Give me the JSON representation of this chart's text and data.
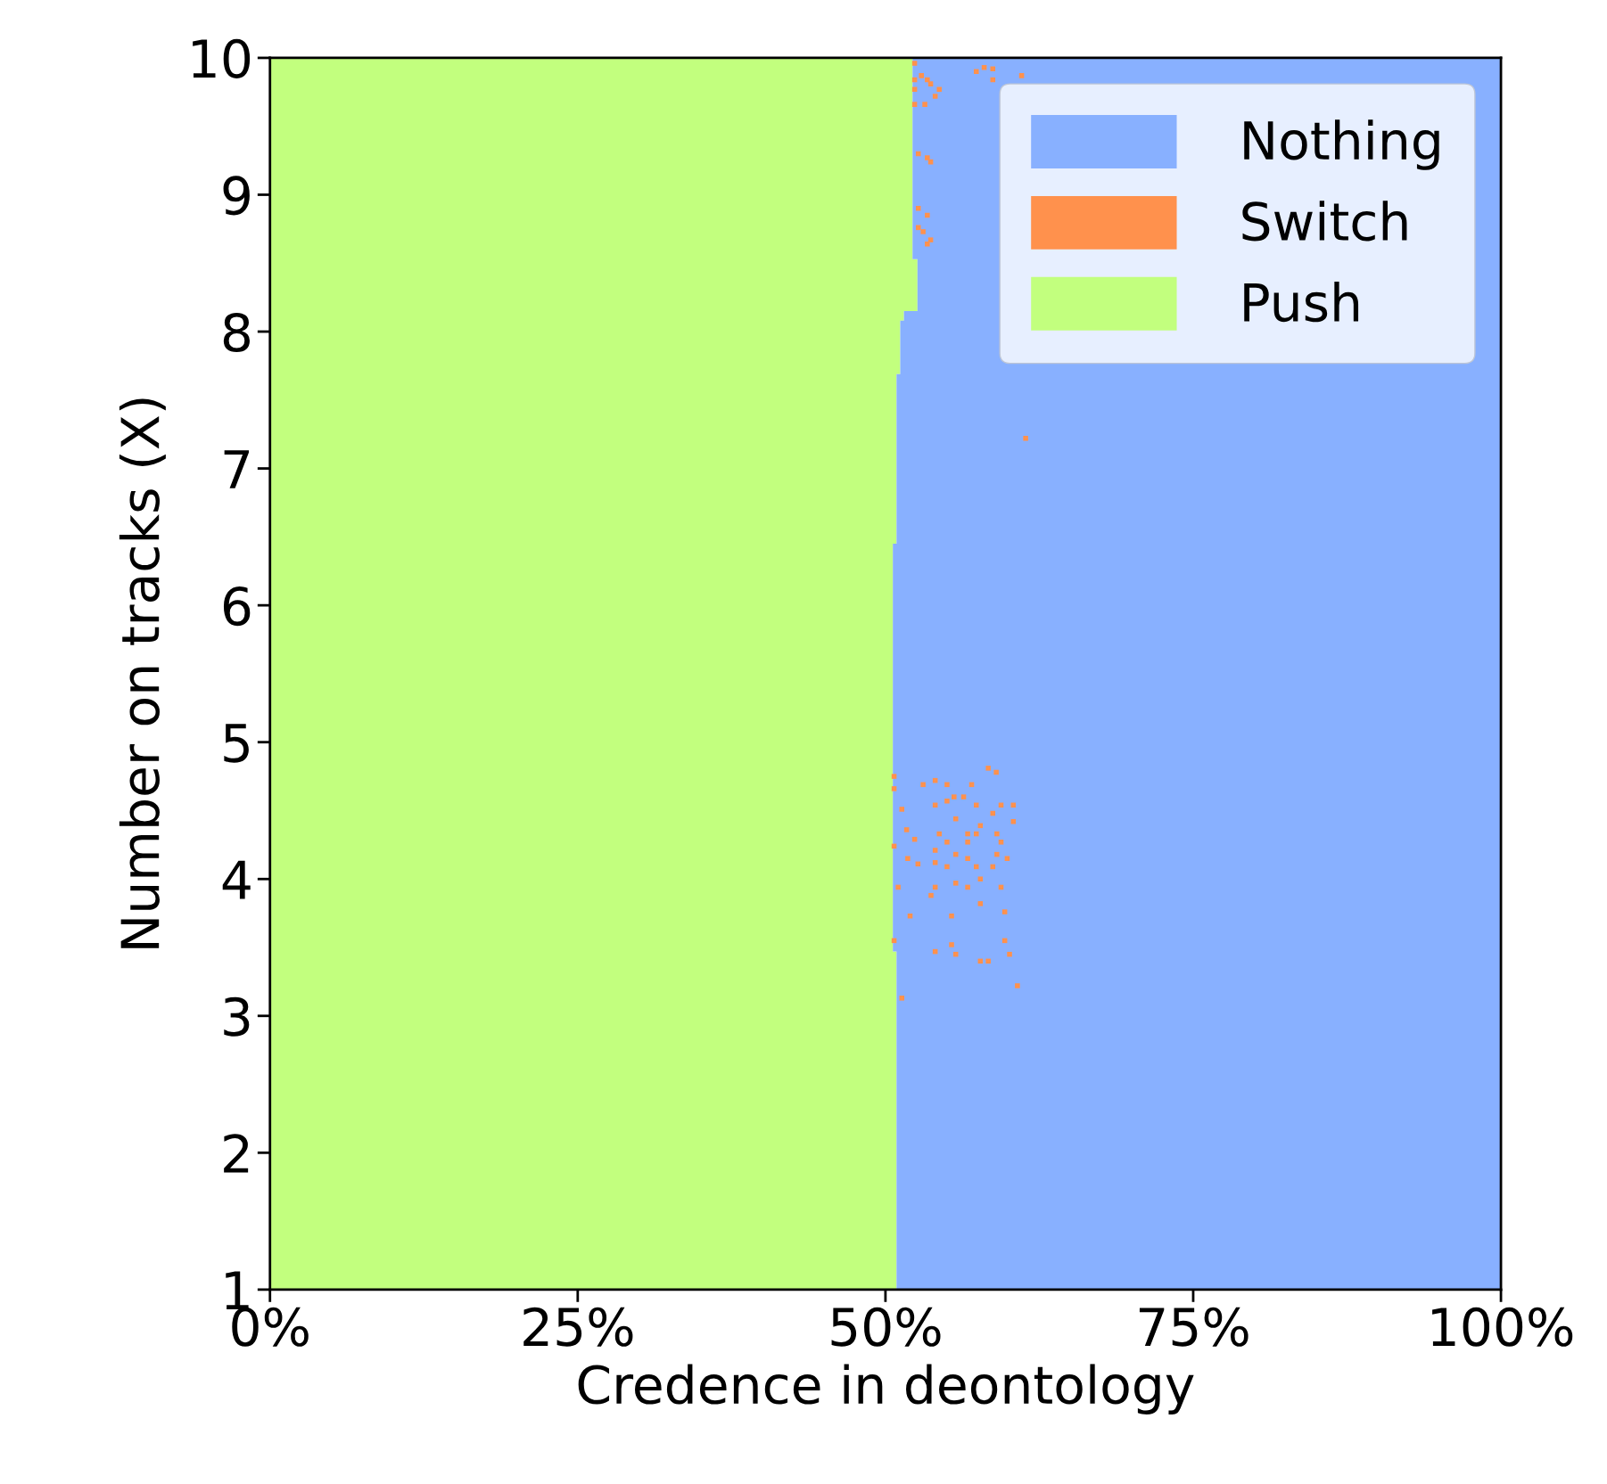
{
  "chart_data": {
    "type": "area",
    "orientation": "horizontal",
    "stacked": true,
    "xlabel": "Credence in deontology",
    "ylabel": "Number on tracks (X)",
    "x": [
      1,
      3.47,
      3.47,
      6.45,
      6.45,
      7.69,
      7.69,
      8.08,
      8.08,
      8.15,
      8.15,
      8.53,
      8.53,
      10
    ],
    "series": [
      {
        "name": "Push",
        "color": "#c2ff7e",
        "values": [
          50.9,
          50.9,
          50.6,
          50.6,
          50.9,
          50.9,
          51.2,
          51.2,
          51.5,
          51.5,
          52.6,
          52.6,
          52.2,
          52.2
        ]
      },
      {
        "name": "Switch",
        "type": "scatter",
        "color": "#ff914d",
        "marker": "square",
        "values": [
          58.35,
          59.0,
          50.7,
          50.7,
          53.06,
          54.04,
          55.0,
          57.0,
          55.57,
          56.35,
          55.0,
          57.38,
          59.39,
          60.39,
          51.33,
          54.04,
          58.72,
          55.71,
          60.39,
          57.71,
          51.72,
          54.37,
          56.68,
          57.38,
          59.05,
          52.37,
          55.0,
          56.68,
          59.39,
          50.7,
          54.04,
          55.71,
          59.05,
          51.81,
          52.64,
          56.68,
          59.89,
          54.04,
          55.0,
          57.38,
          58.72,
          57.71,
          55.71,
          51.03,
          54.04,
          56.68,
          59.39,
          53.7,
          57.71,
          59.69,
          52.0,
          55.37,
          50.7,
          59.69,
          55.37,
          54.04,
          55.71,
          60.08,
          57.71,
          58.35,
          60.72,
          51.33,
          52.37,
          57.38,
          58.02,
          58.72,
          58.72,
          61.06,
          52.37,
          52.92,
          53.4,
          53.67,
          54.37,
          52.37,
          52.37,
          53.2,
          54.04,
          52.67,
          53.4,
          53.67,
          52.67,
          53.4,
          52.67,
          53.06,
          53.4,
          53.67,
          61.39
        ],
        "x": [
          4.81,
          4.78,
          4.75,
          4.66,
          4.69,
          4.72,
          4.69,
          4.69,
          4.6,
          4.6,
          4.57,
          4.54,
          4.54,
          4.54,
          4.51,
          4.54,
          4.48,
          4.44,
          4.42,
          4.39,
          4.36,
          4.33,
          4.33,
          4.33,
          4.33,
          4.29,
          4.27,
          4.27,
          4.27,
          4.24,
          4.21,
          4.18,
          4.18,
          4.15,
          4.11,
          4.15,
          4.15,
          4.12,
          4.09,
          4.09,
          4.09,
          4.0,
          3.97,
          3.94,
          3.94,
          3.94,
          3.94,
          3.88,
          3.82,
          3.76,
          3.73,
          3.73,
          3.55,
          3.55,
          3.52,
          3.47,
          3.45,
          3.45,
          3.4,
          3.4,
          3.22,
          3.13,
          9.96,
          9.9,
          9.93,
          9.92,
          9.84,
          9.87,
          9.84,
          9.87,
          9.84,
          9.81,
          9.77,
          9.77,
          9.66,
          9.66,
          9.72,
          9.3,
          9.27,
          9.24,
          8.9,
          8.85,
          8.76,
          8.73,
          8.64,
          8.67,
          7.22
        ]
      },
      {
        "name": "Nothing",
        "color": "#88b0ff",
        "values": [
          49.1,
          49.1,
          49.4,
          49.4,
          49.1,
          49.1,
          48.8,
          48.8,
          48.5,
          48.5,
          47.4,
          47.4,
          47.8,
          47.8
        ]
      }
    ],
    "xlim": [
      0,
      100
    ],
    "xticks": [
      {
        "value": 0,
        "label": "0%"
      },
      {
        "value": 25,
        "label": "25%"
      },
      {
        "value": 50,
        "label": "50%"
      },
      {
        "value": 75,
        "label": "75%"
      },
      {
        "value": 100,
        "label": "100%"
      }
    ],
    "ylim": [
      1,
      10
    ],
    "yticks": [
      1,
      2,
      3,
      4,
      5,
      6,
      7,
      8,
      9,
      10
    ],
    "grid": false,
    "legend": "top right"
  }
}
